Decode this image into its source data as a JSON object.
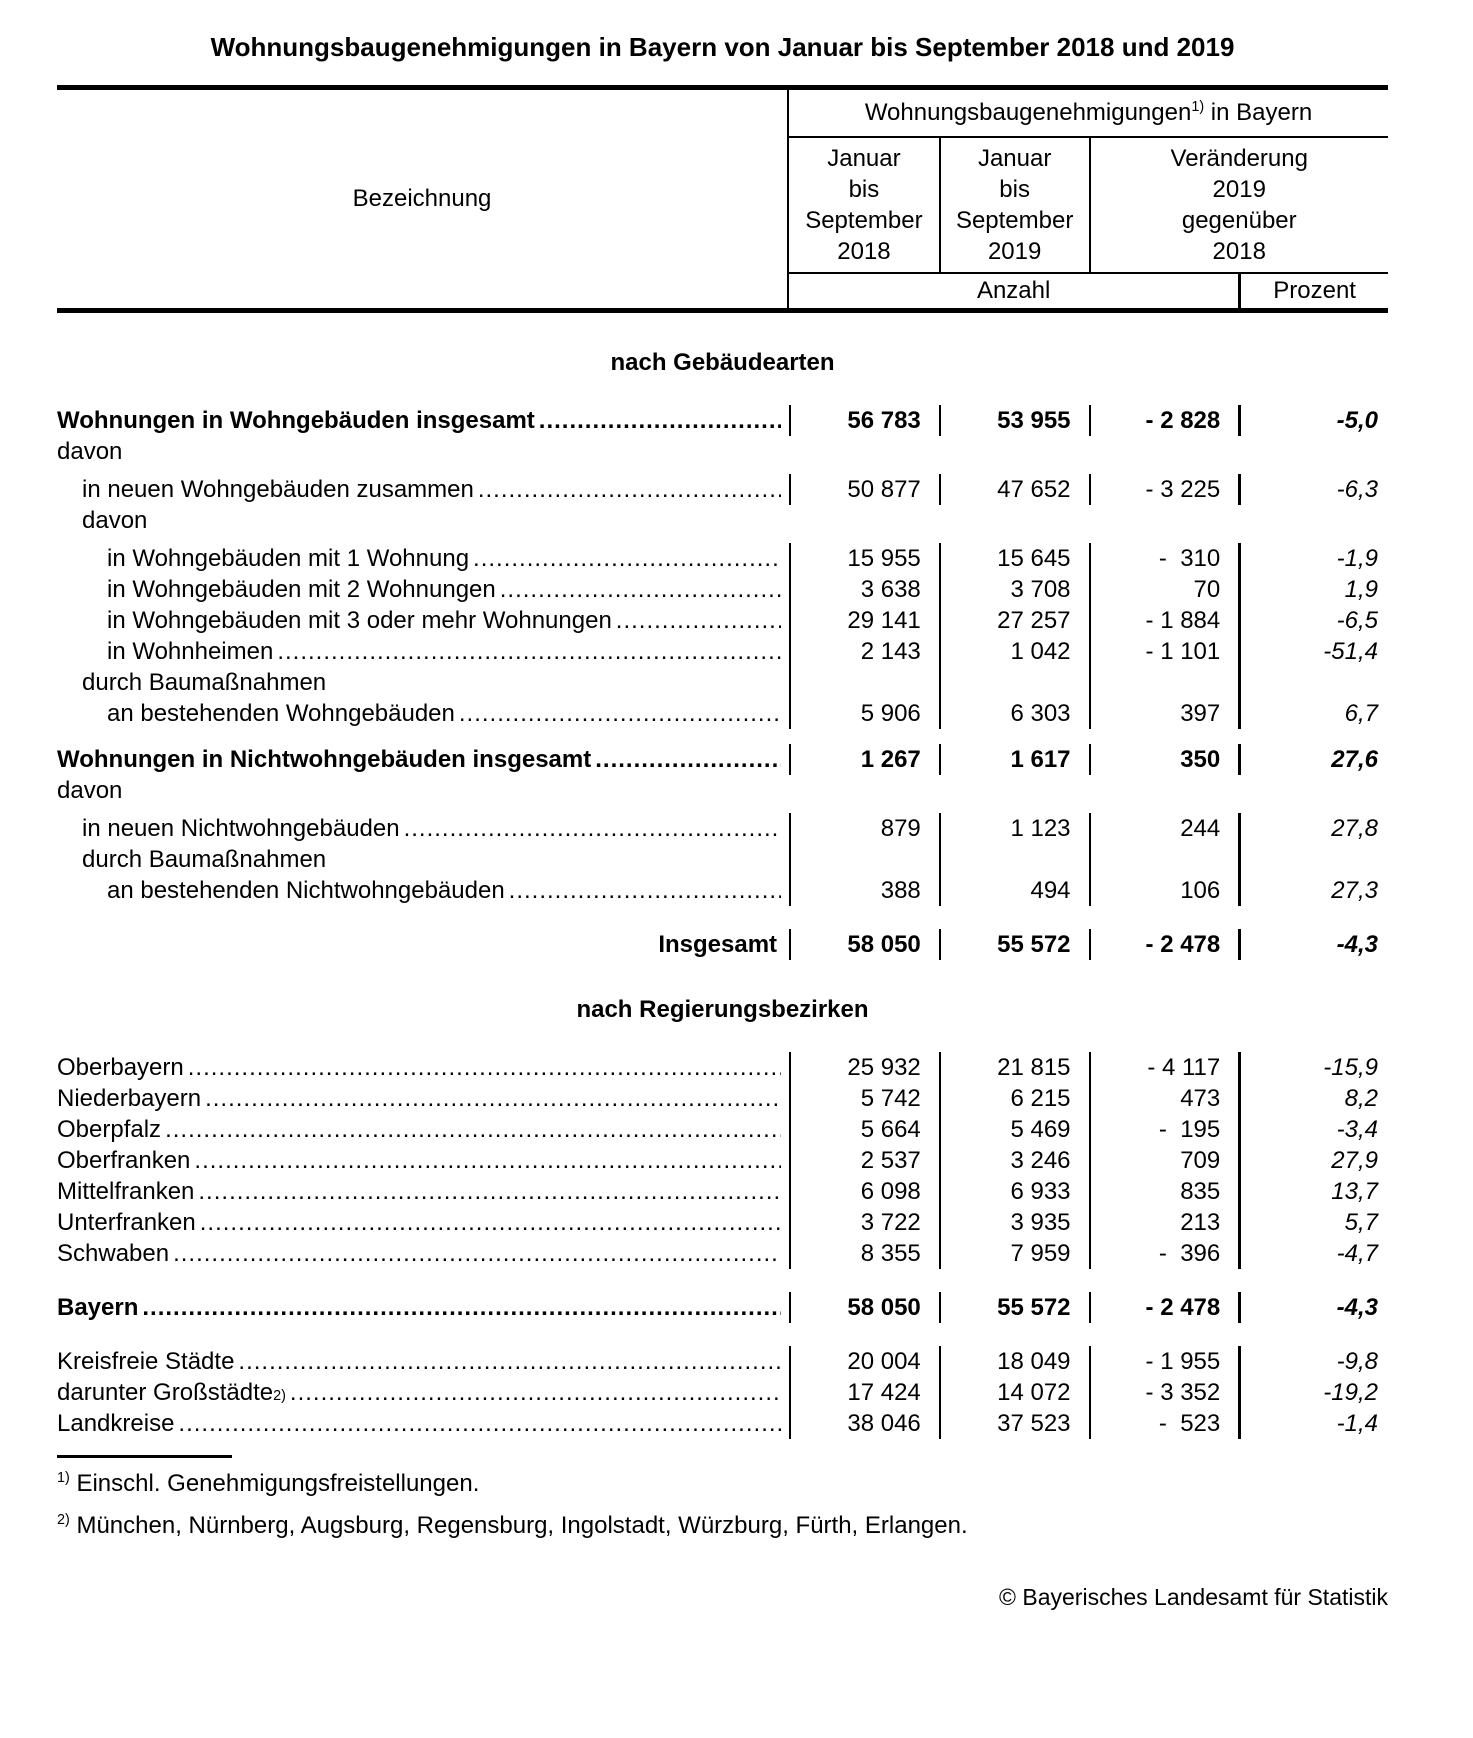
{
  "title": "Wohnungsbaugenehmigungen in Bayern von Januar bis September 2018 und 2019",
  "header": {
    "row_label": "Bezeichnung",
    "group": {
      "title": "Wohnungsbaugenehmigungen",
      "sup": "1)",
      "suffix": " in Bayern"
    },
    "col_2018": "Januar\nbis\nSeptember\n2018",
    "col_2019": "Januar\nbis\nSeptember\n2019",
    "col_change": "Veränderung\n2019\ngegenüber\n2018",
    "unit_count": "Anzahl",
    "unit_percent": "Prozent"
  },
  "sections": [
    {
      "heading": "nach Gebäudearten",
      "rows": [
        {
          "label": "Wohnungen in Wohngebäuden insgesamt",
          "indent": 0,
          "bold": true,
          "leader": true,
          "lines": true,
          "values": [
            "56 783",
            "53 955",
            "- 2 828",
            "-5,0"
          ]
        },
        {
          "label": "davon",
          "indent": 0,
          "bold": false,
          "leader": false,
          "lines": false,
          "values": null
        },
        {
          "label": "in neuen Wohngebäuden zusammen",
          "indent": 1,
          "bold": false,
          "leader": true,
          "lines": true,
          "gap": "s",
          "values": [
            "50 877",
            "47 652",
            "- 3 225",
            "-6,3"
          ]
        },
        {
          "label": "davon",
          "indent": 1,
          "bold": false,
          "leader": false,
          "lines": false,
          "values": null
        },
        {
          "label": "in Wohngebäuden mit 1 Wohnung",
          "indent": 2,
          "bold": false,
          "leader": true,
          "lines": true,
          "gap": "s",
          "values": [
            "15 955",
            "15 645",
            "-  310",
            "-1,9"
          ]
        },
        {
          "label": "in Wohngebäuden mit 2 Wohnungen",
          "indent": 2,
          "bold": false,
          "leader": true,
          "lines": true,
          "values": [
            "3 638",
            "3 708",
            "70",
            "1,9"
          ]
        },
        {
          "label": "in Wohngebäuden mit 3 oder mehr Wohnungen",
          "indent": 2,
          "bold": false,
          "leader": true,
          "lines": true,
          "values": [
            "29 141",
            "27 257",
            "- 1 884",
            "-6,5"
          ]
        },
        {
          "label": "in Wohnheimen",
          "indent": 2,
          "bold": false,
          "leader": true,
          "lines": true,
          "values": [
            "2 143",
            "1 042",
            "- 1 101",
            "-51,4"
          ]
        },
        {
          "label": "durch Baumaßnahmen",
          "indent": 1,
          "bold": false,
          "leader": false,
          "lines": true,
          "values": null
        },
        {
          "label": "an bestehenden Wohngebäuden",
          "indent": 2,
          "bold": false,
          "leader": true,
          "lines": true,
          "values": [
            "5 906",
            "6 303",
            "397",
            "6,7"
          ]
        },
        {
          "label": "Wohnungen in Nichtwohngebäuden insgesamt",
          "indent": 0,
          "bold": true,
          "leader": true,
          "lines": true,
          "gap": "m",
          "values": [
            "1 267",
            "1 617",
            "350",
            "27,6"
          ]
        },
        {
          "label": "davon",
          "indent": 0,
          "bold": false,
          "leader": false,
          "lines": false,
          "values": null
        },
        {
          "label": "in neuen Nichtwohngebäuden",
          "indent": 1,
          "bold": false,
          "leader": true,
          "lines": true,
          "gap": "s",
          "values": [
            "879",
            "1 123",
            "244",
            "27,8"
          ]
        },
        {
          "label": "durch Baumaßnahmen",
          "indent": 1,
          "bold": false,
          "leader": false,
          "lines": true,
          "values": null
        },
        {
          "label": "an bestehenden Nichtwohngebäuden",
          "indent": 2,
          "bold": false,
          "leader": true,
          "lines": true,
          "values": [
            "388",
            "494",
            "106",
            "27,3"
          ]
        },
        {
          "label": "Insgesamt",
          "indent": 0,
          "bold": true,
          "leader": false,
          "lines": true,
          "align": "right",
          "gap": "l",
          "values": [
            "58 050",
            "55 572",
            "- 2 478",
            "-4,3"
          ]
        }
      ]
    },
    {
      "heading": "nach Regierungsbezirken",
      "rows": [
        {
          "label": "Oberbayern",
          "indent": 0,
          "bold": false,
          "leader": true,
          "lines": true,
          "values": [
            "25 932",
            "21 815",
            "- 4 117",
            "-15,9"
          ]
        },
        {
          "label": "Niederbayern",
          "indent": 0,
          "bold": false,
          "leader": true,
          "lines": true,
          "values": [
            "5 742",
            "6 215",
            "473",
            "8,2"
          ]
        },
        {
          "label": "Oberpfalz",
          "indent": 0,
          "bold": false,
          "leader": true,
          "lines": true,
          "values": [
            "5 664",
            "5 469",
            "-  195",
            "-3,4"
          ]
        },
        {
          "label": "Oberfranken",
          "indent": 0,
          "bold": false,
          "leader": true,
          "lines": true,
          "values": [
            "2 537",
            "3 246",
            "709",
            "27,9"
          ]
        },
        {
          "label": "Mittelfranken",
          "indent": 0,
          "bold": false,
          "leader": true,
          "lines": true,
          "values": [
            "6 098",
            "6 933",
            "835",
            "13,7"
          ]
        },
        {
          "label": "Unterfranken",
          "indent": 0,
          "bold": false,
          "leader": true,
          "lines": true,
          "values": [
            "3 722",
            "3 935",
            "213",
            "5,7"
          ]
        },
        {
          "label": "Schwaben",
          "indent": 0,
          "bold": false,
          "leader": true,
          "lines": true,
          "values": [
            "8 355",
            "7 959",
            "-  396",
            "-4,7"
          ]
        },
        {
          "label": "Bayern",
          "indent": 0,
          "bold": true,
          "leader": true,
          "lines": true,
          "gap": "l",
          "values": [
            "58 050",
            "55 572",
            "- 2 478",
            "-4,3"
          ]
        },
        {
          "label": "Kreisfreie Städte",
          "indent": 0,
          "bold": false,
          "leader": true,
          "lines": true,
          "gap": "l",
          "values": [
            "20 004",
            "18 049",
            "- 1 955",
            "-9,8"
          ]
        },
        {
          "label": "darunter Großstädte",
          "sup": "2)",
          "indent": 0,
          "bold": false,
          "leader": true,
          "lines": true,
          "values": [
            "17 424",
            "14 072",
            "- 3 352",
            "-19,2"
          ]
        },
        {
          "label": "Landkreise",
          "indent": 0,
          "bold": false,
          "leader": true,
          "lines": true,
          "values": [
            "38 046",
            "37 523",
            "-  523",
            "-1,4"
          ]
        }
      ]
    }
  ],
  "footnotes": [
    {
      "marker": "1)",
      "text": "Einschl. Genehmigungsfreistellungen."
    },
    {
      "marker": "2)",
      "text": "München, Nürnberg, Augsburg, Regensburg, Ingolstadt, Würzburg, Fürth, Erlangen."
    }
  ],
  "copyright": "© Bayerisches Landesamt für Statistik"
}
